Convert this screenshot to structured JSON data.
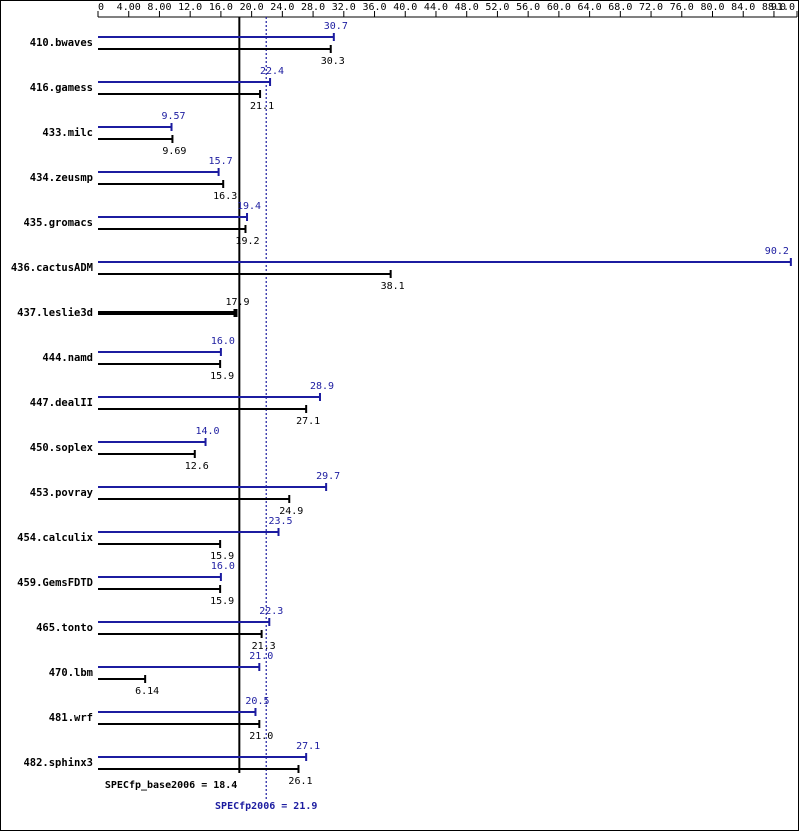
{
  "chart_data": {
    "type": "bar",
    "categories": [
      "410.bwaves",
      "416.gamess",
      "433.milc",
      "434.zeusmp",
      "435.gromacs",
      "436.cactusADM",
      "437.leslie3d",
      "444.namd",
      "447.dealII",
      "450.soplex",
      "453.povray",
      "454.calculix",
      "459.GemsFDTD",
      "465.tonto",
      "470.lbm",
      "481.wrf",
      "482.sphinx3"
    ],
    "series": [
      {
        "color": "#1c1ca0",
        "values": [
          30.7,
          22.4,
          9.57,
          15.7,
          19.4,
          90.2,
          null,
          16.0,
          28.9,
          14.0,
          29.7,
          23.5,
          16.0,
          22.3,
          21.0,
          20.5,
          27.1
        ],
        "value_labels": [
          "30.7",
          "22.4",
          "9.57",
          "15.7",
          "19.4",
          "90.2",
          null,
          "16.0",
          "28.9",
          "14.0",
          "29.7",
          "23.5",
          "16.0",
          "22.3",
          "21.0",
          "20.5",
          "27.1"
        ]
      },
      {
        "color": "#000000",
        "values": [
          30.3,
          21.1,
          9.69,
          16.3,
          19.2,
          38.1,
          17.9,
          15.9,
          27.1,
          12.6,
          24.9,
          15.9,
          15.9,
          21.3,
          6.14,
          21.0,
          26.1
        ],
        "value_labels": [
          "30.3",
          "21.1",
          "9.69",
          "16.3",
          "19.2",
          "38.1",
          "17.9",
          "15.9",
          "27.1",
          "12.6",
          "24.9",
          "15.9",
          "15.9",
          "21.3",
          "6.14",
          "21.0",
          "26.1"
        ]
      }
    ],
    "xlim": [
      0,
      91
    ],
    "xticks": [
      0,
      {
        "value": 4,
        "label": "4.00"
      },
      {
        "value": 8,
        "label": "8.00"
      },
      {
        "value": 12,
        "label": "12.0"
      },
      {
        "value": 16,
        "label": "16.0"
      },
      {
        "value": 20,
        "label": "20.0"
      },
      {
        "value": 24,
        "label": "24.0"
      },
      {
        "value": 28,
        "label": "28.0"
      },
      {
        "value": 32,
        "label": "32.0"
      },
      {
        "value": 36,
        "label": "36.0"
      },
      {
        "value": 40,
        "label": "40.0"
      },
      {
        "value": 44,
        "label": "44.0"
      },
      {
        "value": 48,
        "label": "48.0"
      },
      {
        "value": 52,
        "label": "52.0"
      },
      {
        "value": 56,
        "label": "56.0"
      },
      {
        "value": 60,
        "label": "60.0"
      },
      {
        "value": 64,
        "label": "64.0"
      },
      {
        "value": 68,
        "label": "68.0"
      },
      {
        "value": 72,
        "label": "72.0"
      },
      {
        "value": 76,
        "label": "76.0"
      },
      {
        "value": 80,
        "label": "80.0"
      },
      {
        "value": 84,
        "label": "84.0"
      },
      {
        "value": 88,
        "label": "88.0"
      },
      {
        "value": 91,
        "label": "91.0"
      }
    ],
    "reference_lines": [
      {
        "text": "SPECfp_base2006 = 18.4",
        "value": 18.4,
        "color": "#000000"
      },
      {
        "text": "SPECfp2006 = 21.9",
        "value": 21.9,
        "color": "#1c1ca0"
      }
    ]
  }
}
